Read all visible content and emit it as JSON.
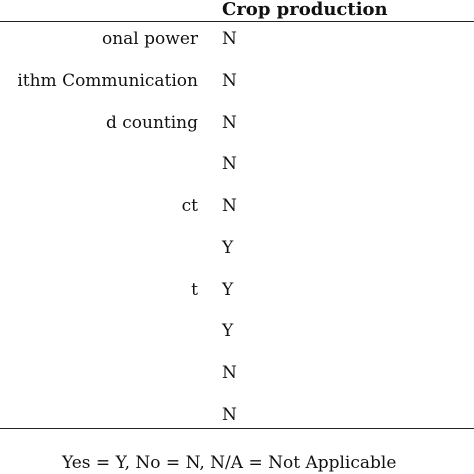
{
  "table": {
    "column_header": "Crop production",
    "rows": [
      {
        "label": "onal power",
        "value": "N"
      },
      {
        "label": "ithm Communication",
        "value": "N"
      },
      {
        "label": "d counting",
        "value": "N"
      },
      {
        "label": "",
        "value": "N"
      },
      {
        "label": "ct",
        "value": "N"
      },
      {
        "label": "",
        "value": "Y"
      },
      {
        "label": "t",
        "value": "Y"
      },
      {
        "label": "",
        "value": "Y"
      },
      {
        "label": "",
        "value": "N"
      },
      {
        "label": "",
        "value": "N"
      }
    ]
  },
  "footnote": "Yes = Y, No = N, N/A = Not Applicable"
}
